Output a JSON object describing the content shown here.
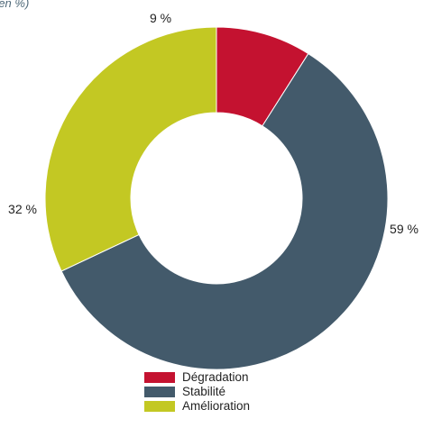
{
  "subtitle": "(en %)",
  "chart_data": {
    "type": "pie",
    "variant": "donut",
    "categories": [
      "Dégradation",
      "Stabilité",
      "Amélioration"
    ],
    "values": [
      9,
      59,
      32
    ],
    "value_labels": [
      "9 %",
      "59 %",
      "32 %"
    ],
    "colors": [
      "#c41230",
      "#435a6b",
      "#c3c823"
    ],
    "start": "top, clockwise",
    "legend_position": "bottom"
  }
}
